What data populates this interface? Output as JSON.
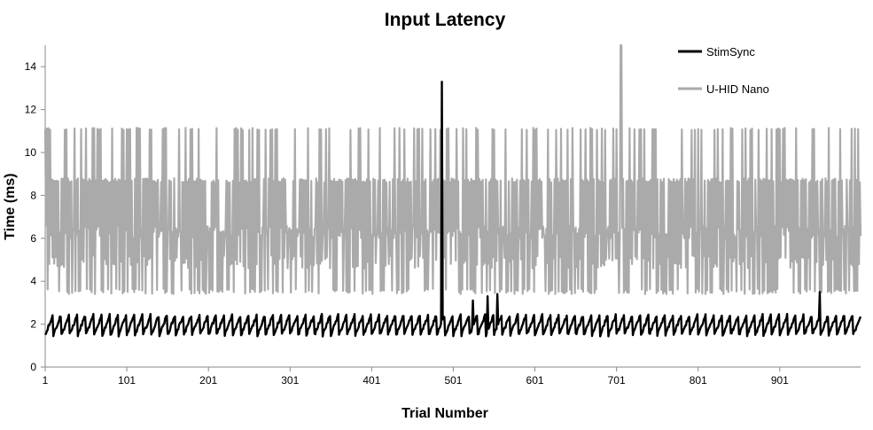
{
  "chart_data": {
    "type": "line",
    "title": "Input Latency",
    "xlabel": "Trial Number",
    "ylabel": "Time (ms)",
    "xlim": [
      1,
      1000
    ],
    "ylim": [
      0,
      15
    ],
    "x_ticks": [
      1,
      101,
      201,
      301,
      401,
      501,
      601,
      701,
      801,
      901
    ],
    "y_ticks": [
      0,
      2,
      4,
      6,
      8,
      10,
      12,
      14
    ],
    "grid": false,
    "legend_position": "top-right",
    "series": [
      {
        "name": "StimSync",
        "color": "#000000",
        "pattern": "sawtooth",
        "min": 1.5,
        "max": 2.5,
        "period": 10,
        "spikes": [
          {
            "x": 487,
            "y": 13.3
          },
          {
            "x": 525,
            "y": 3.1
          },
          {
            "x": 543,
            "y": 3.3
          },
          {
            "x": 555,
            "y": 3.4
          },
          {
            "x": 950,
            "y": 3.5
          }
        ]
      },
      {
        "name": "U-HID Nano",
        "color": "#aaaaaa",
        "pattern": "oscillating",
        "levels_low": [
          3.4,
          4.6
        ],
        "levels_mid": [
          6.0,
          6.6
        ],
        "levels_high": [
          8.6,
          11.1
        ],
        "spikes": [
          {
            "x": 706,
            "y": 15.0
          }
        ]
      }
    ]
  }
}
